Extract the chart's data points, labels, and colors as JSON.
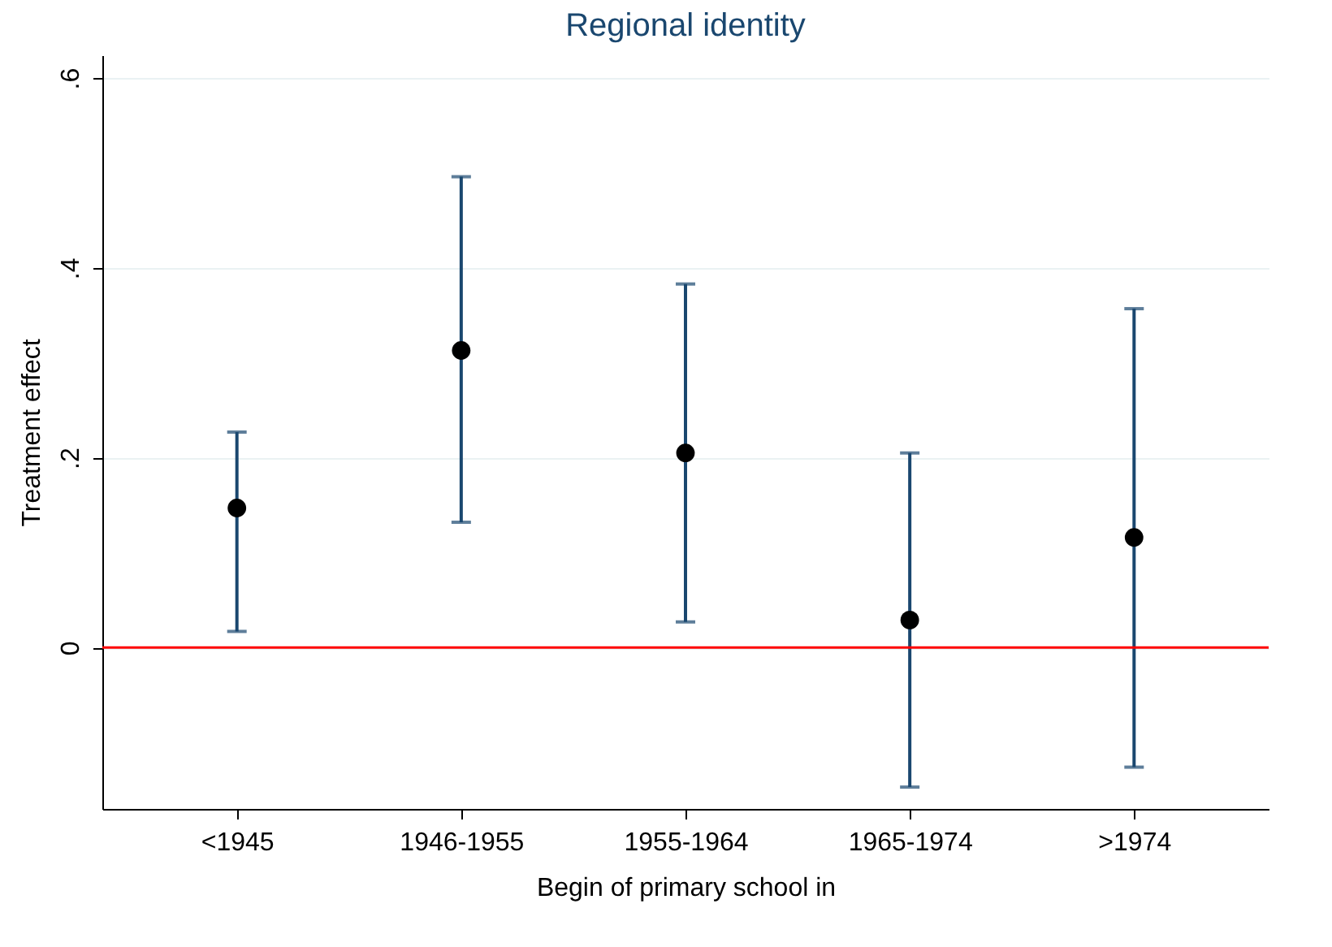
{
  "chart_data": {
    "type": "scatter",
    "title": "Regional identity",
    "xlabel": "Begin of primary school in",
    "ylabel": "Treatment effect",
    "categories": [
      "<1945",
      "1946-1955",
      "1955-1964",
      "1965-1974",
      ">1974"
    ],
    "series": [
      {
        "color": "#000000",
        "values": [
          0.147,
          0.313,
          0.205,
          0.029,
          0.116
        ],
        "errors": [
          [
            0.017,
            0.227
          ],
          [
            0.132,
            0.496
          ],
          [
            0.027,
            0.383
          ],
          [
            -0.147,
            0.205
          ],
          [
            -0.126,
            0.357
          ]
        ]
      }
    ],
    "ylim": [
      -0.17,
      0.624
    ],
    "yticks": [
      {
        "value": 0,
        "label": "0"
      },
      {
        "value": 0.2,
        "label": ".2"
      },
      {
        "value": 0.4,
        "label": ".4"
      },
      {
        "value": 0.6,
        "label": ".6"
      }
    ],
    "ref_lines": [
      {
        "axis": "y",
        "value": 0,
        "color": "#ff0000"
      }
    ],
    "grid": "y",
    "marker": "circle"
  }
}
